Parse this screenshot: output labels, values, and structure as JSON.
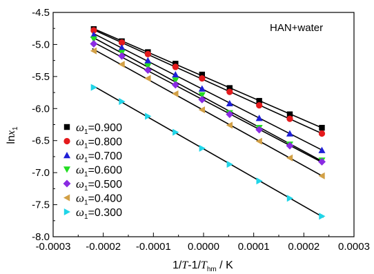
{
  "chart_data": {
    "type": "scatter",
    "title": "",
    "annotation": "HAN+water",
    "xlabel": {
      "main": "1/",
      "t": "T",
      "mid": "-1/",
      "t2": "T",
      "sub": "hm",
      "unit": " / K"
    },
    "ylabel": {
      "main": "ln",
      "var": "x",
      "sub": "1"
    },
    "xlim": [
      -0.0003,
      0.0003
    ],
    "ylim": [
      -8.0,
      -4.5
    ],
    "xticks": [
      -0.0003,
      -0.0002,
      -0.0001,
      0.0,
      0.0001,
      0.0002,
      0.0003
    ],
    "xtick_labels": [
      "-0.0003",
      "-0.0002",
      "-0.0001",
      "0.0000",
      "0.0001",
      "0.0002",
      "0.0003"
    ],
    "yticks": [
      -8.0,
      -7.5,
      -7.0,
      -6.5,
      -6.0,
      -5.5,
      -5.0,
      -4.5
    ],
    "ytick_labels": [
      "-8.0",
      "-7.5",
      "-7.0",
      "-6.5",
      "-6.0",
      "-5.5",
      "-5.0",
      "-4.5"
    ],
    "legend_position": "left",
    "legend_symbol": "ω",
    "legend_sub": "1",
    "x": [
      -0.000219,
      -0.000163,
      -0.000111,
      -5.6e-05,
      -3e-06,
      5.2e-05,
      0.000111,
      0.000172,
      0.000236
    ],
    "series": [
      {
        "name": "=0.900",
        "marker": "square",
        "color": "#000000",
        "values": [
          -4.76,
          -4.95,
          -5.12,
          -5.3,
          -5.47,
          -5.68,
          -5.88,
          -6.09,
          -6.3
        ]
      },
      {
        "name": "=0.800",
        "marker": "circle",
        "color": "#e41a1c",
        "values": [
          -4.78,
          -4.97,
          -5.15,
          -5.35,
          -5.53,
          -5.74,
          -5.95,
          -6.16,
          -6.39
        ]
      },
      {
        "name": "=0.700",
        "marker": "triangle-up",
        "color": "#1f1fd6",
        "values": [
          -4.85,
          -5.05,
          -5.25,
          -5.47,
          -5.69,
          -5.92,
          -6.15,
          -6.39,
          -6.65
        ]
      },
      {
        "name": "=0.600",
        "marker": "triangle-down",
        "color": "#22dd22",
        "values": [
          -4.92,
          -5.13,
          -5.34,
          -5.56,
          -5.79,
          -6.07,
          -6.3,
          -6.56,
          -6.81
        ]
      },
      {
        "name": "=0.500",
        "marker": "diamond",
        "color": "#8a2be2",
        "values": [
          -4.99,
          -5.18,
          -5.4,
          -5.63,
          -5.86,
          -6.09,
          -6.33,
          -6.58,
          -6.83
        ]
      },
      {
        "name": "=0.400",
        "marker": "triangle-left",
        "color": "#d2a046",
        "values": [
          -5.1,
          -5.31,
          -5.53,
          -5.77,
          -6.02,
          -6.26,
          -6.51,
          -6.77,
          -7.05
        ]
      },
      {
        "name": "=0.300",
        "marker": "triangle-right",
        "color": "#20d5e8",
        "values": [
          -5.67,
          -5.89,
          -6.12,
          -6.37,
          -6.62,
          -6.87,
          -7.13,
          -7.4,
          -7.68
        ]
      }
    ],
    "grid": false
  }
}
